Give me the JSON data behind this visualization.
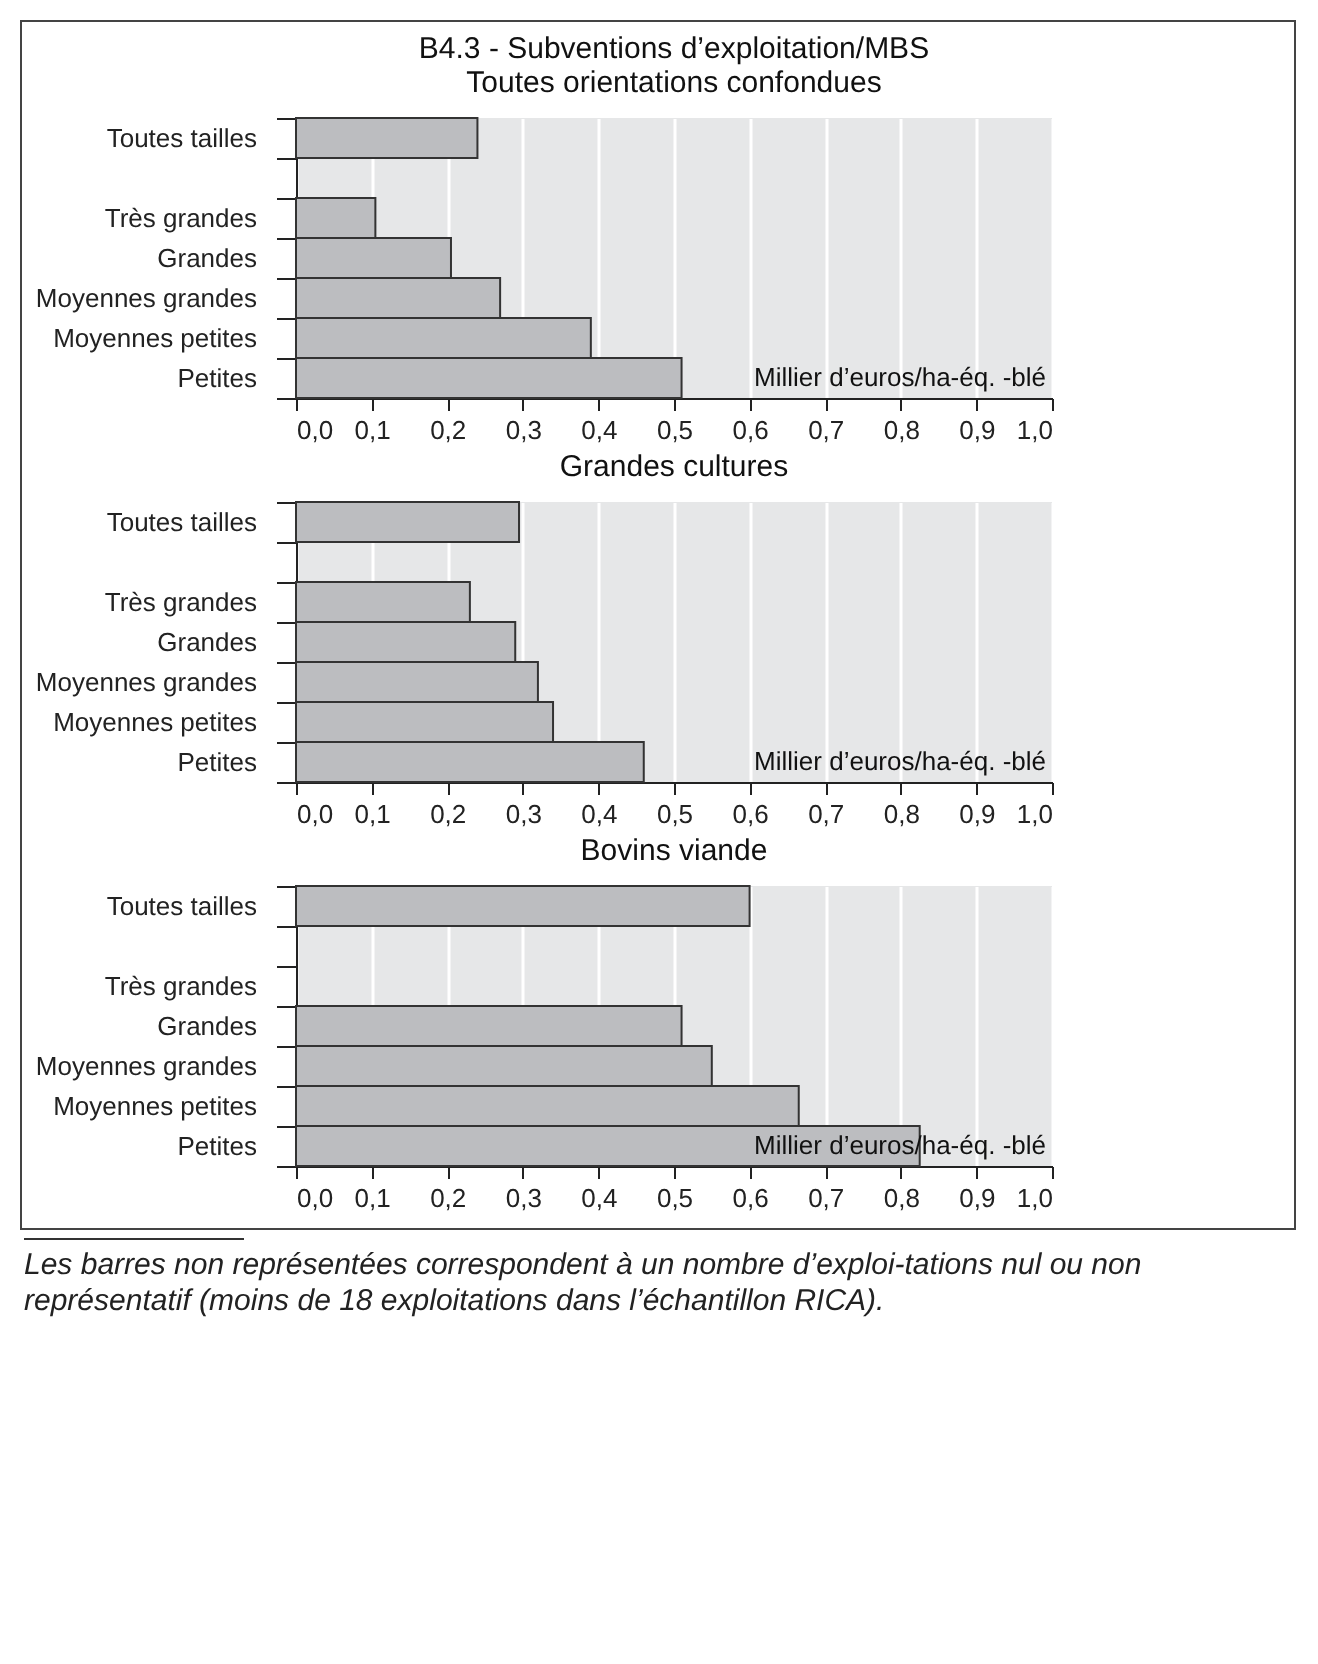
{
  "chart_data": [
    {
      "type": "bar",
      "orientation": "horizontal",
      "title": "B4.3 - Subventions d’exploitation/MBS",
      "subtitle": "Toutes orientations confondues",
      "xlabel": "Millier d’euros/ha-éq. -blé",
      "categories": [
        "Toutes tailles",
        null,
        "Très grandes",
        "Grandes",
        "Moyennes grandes",
        "Moyennes petites",
        "Petites"
      ],
      "values": [
        0.24,
        null,
        0.105,
        0.205,
        0.27,
        0.39,
        0.51
      ],
      "color": "#bcbdc0",
      "xlim": [
        0,
        1
      ],
      "xticks": [
        {
          "value": 0,
          "label": "0,0"
        },
        {
          "value": 0.1,
          "label": "0,1"
        },
        {
          "value": 0.2,
          "label": "0,2"
        },
        {
          "value": 0.3,
          "label": "0,3"
        },
        {
          "value": 0.4,
          "label": "0,4"
        },
        {
          "value": 0.5,
          "label": "0,5"
        },
        {
          "value": 0.6,
          "label": "0,6"
        },
        {
          "value": 0.7,
          "label": "0,7"
        },
        {
          "value": 0.8,
          "label": "0,8"
        },
        {
          "value": 0.9,
          "label": "0,9"
        },
        {
          "value": 1,
          "label": "1,0"
        }
      ],
      "grid": "x"
    },
    {
      "type": "bar",
      "orientation": "horizontal",
      "title": "Grandes cultures",
      "xlabel": "Millier d’euros/ha-éq. -blé",
      "categories": [
        "Toutes tailles",
        null,
        "Très grandes",
        "Grandes",
        "Moyennes grandes",
        "Moyennes petites",
        "Petites"
      ],
      "values": [
        0.295,
        null,
        0.23,
        0.29,
        0.32,
        0.34,
        0.46
      ],
      "color": "#bcbdc0",
      "xlim": [
        0,
        1
      ],
      "xticks": [
        {
          "value": 0,
          "label": "0,0"
        },
        {
          "value": 0.1,
          "label": "0,1"
        },
        {
          "value": 0.2,
          "label": "0,2"
        },
        {
          "value": 0.3,
          "label": "0,3"
        },
        {
          "value": 0.4,
          "label": "0,4"
        },
        {
          "value": 0.5,
          "label": "0,5"
        },
        {
          "value": 0.6,
          "label": "0,6"
        },
        {
          "value": 0.7,
          "label": "0,7"
        },
        {
          "value": 0.8,
          "label": "0,8"
        },
        {
          "value": 0.9,
          "label": "0,9"
        },
        {
          "value": 1,
          "label": "1,0"
        }
      ],
      "grid": "x"
    },
    {
      "type": "bar",
      "orientation": "horizontal",
      "title": "Bovins viande",
      "xlabel": "Millier d’euros/ha-éq. -blé",
      "categories": [
        "Toutes tailles",
        null,
        "Très grandes",
        "Grandes",
        "Moyennes grandes",
        "Moyennes petites",
        "Petites"
      ],
      "values": [
        0.6,
        null,
        null,
        0.51,
        0.55,
        0.665,
        0.825
      ],
      "color": "#bcbdc0",
      "xlim": [
        0,
        1
      ],
      "xticks": [
        {
          "value": 0,
          "label": "0,0"
        },
        {
          "value": 0.1,
          "label": "0,1"
        },
        {
          "value": 0.2,
          "label": "0,2"
        },
        {
          "value": 0.3,
          "label": "0,3"
        },
        {
          "value": 0.4,
          "label": "0,4"
        },
        {
          "value": 0.5,
          "label": "0,5"
        },
        {
          "value": 0.6,
          "label": "0,6"
        },
        {
          "value": 0.7,
          "label": "0,7"
        },
        {
          "value": 0.8,
          "label": "0,8"
        },
        {
          "value": 0.9,
          "label": "0,9"
        },
        {
          "value": 1,
          "label": "1,0"
        }
      ],
      "grid": "x",
      "annotations": [
        "Les barres non représentées correspondent à un nombre d’exploi-tations nul ou non représentatif (moins de 18 exploitations dans l’échantillon RICA)."
      ]
    }
  ]
}
